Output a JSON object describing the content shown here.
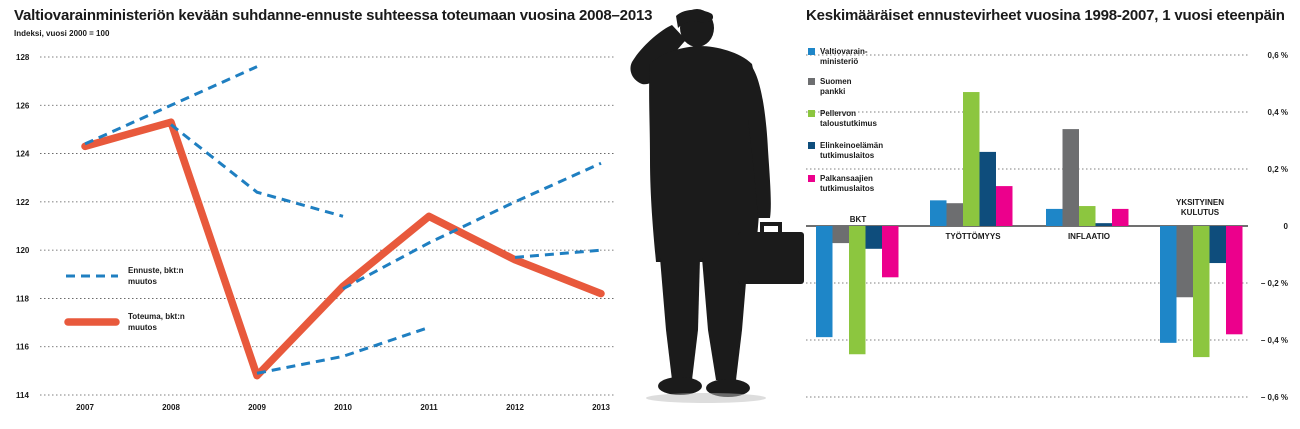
{
  "left_chart": {
    "title": "Valtiovarainministeriön kevään suhdanne-ennuste suhteessa toteumaan vuosina 2008–2013",
    "subtitle": "Indeksi, vuosi 2000 = 100"
  },
  "right_chart": {
    "title": "Keskimääräiset ennustevirheet vuosina 1998-2007, 1 vuosi eteenpäin"
  },
  "colors": {
    "forecast": "#1f7fc1",
    "actual": "#e8593c",
    "grid": "#555555",
    "valtiovarainministerio": "#1e86c8",
    "suomen_pankki": "#6d6e70",
    "pellervo": "#8cc63f",
    "elinkeinoelama": "#0e4d7c",
    "palkansaajat": "#ec008c"
  },
  "chart_data": [
    {
      "type": "line",
      "title": "Valtiovarainministeriön kevään suhdanne-ennuste suhteessa toteumaan vuosina 2008–2013",
      "ylabel": "Indeksi, vuosi 2000 = 100",
      "x": [
        "2007",
        "2008",
        "2009",
        "2010",
        "2011",
        "2012",
        "2013"
      ],
      "ylim": [
        114,
        128
      ],
      "yticks": [
        "114",
        "116",
        "118",
        "120",
        "122",
        "124",
        "126",
        "128"
      ],
      "grid": true,
      "legend_position": "left",
      "series": [
        {
          "name": "Toteuma, bkt:n muutos",
          "style": "solid",
          "color": "#e8593c",
          "points": [
            [
              "2007",
              124.3
            ],
            [
              "2008",
              125.3
            ],
            [
              "2009",
              114.8
            ],
            [
              "2010",
              118.5
            ],
            [
              "2011",
              121.4
            ],
            [
              "2012",
              119.6
            ],
            [
              "2013",
              118.2
            ]
          ]
        },
        {
          "name": "Ennuste, bkt:n muutos",
          "style": "dashed",
          "color": "#1f7fc1",
          "segments": [
            [
              [
                "2007",
                124.4
              ],
              [
                "2008",
                126.0
              ],
              [
                "2009",
                127.6
              ]
            ],
            [
              [
                "2008",
                125.2
              ],
              [
                "2009",
                122.4
              ],
              [
                "2010",
                121.4
              ]
            ],
            [
              [
                "2009",
                114.9
              ],
              [
                "2010",
                115.6
              ],
              [
                "2011",
                116.8
              ]
            ],
            [
              [
                "2010",
                118.4
              ],
              [
                "2011",
                120.3
              ],
              [
                "2012",
                122.0
              ],
              [
                "2013",
                123.6
              ]
            ],
            [
              [
                "2012",
                119.7
              ],
              [
                "2013",
                120.0
              ]
            ]
          ]
        }
      ]
    },
    {
      "type": "bar",
      "title": "Keskimääräiset ennustevirheet vuosina 1998-2007, 1 vuosi eteenpäin",
      "categories": [
        "BKT",
        "TYÖTTÖMYYS",
        "INFLAATIO",
        "YKSITYINEN KULUTUS"
      ],
      "ylim": [
        -0.6,
        0.6
      ],
      "yticks": [
        "– 0,6 %",
        "– 0,4 %",
        "– 0,2 %",
        "0",
        "0,2 %",
        "0,4 %",
        "0,6 %"
      ],
      "ytick_values": [
        -0.6,
        -0.4,
        -0.2,
        0,
        0.2,
        0.4,
        0.6
      ],
      "grid": true,
      "legend_position": "top-left",
      "series": [
        {
          "name": "Valtiovarain-ministeriö",
          "legend_lines": [
            "Valtiovarain-",
            "ministeriö"
          ],
          "color": "#1e86c8",
          "values": [
            -0.39,
            0.09,
            0.06,
            -0.41
          ]
        },
        {
          "name": "Suomen pankki",
          "legend_lines": [
            "Suomen",
            "pankki"
          ],
          "color": "#6d6e70",
          "values": [
            -0.06,
            0.08,
            0.34,
            -0.25
          ]
        },
        {
          "name": "Pellervon taloustutkimus",
          "legend_lines": [
            "Pellervon",
            "taloustutkimus"
          ],
          "color": "#8cc63f",
          "values": [
            -0.45,
            0.47,
            0.07,
            -0.46
          ]
        },
        {
          "name": "Elinkeinoelämän tutkimuslaitos",
          "legend_lines": [
            "Elinkeinoelämän",
            "tutkimuslaitos"
          ],
          "color": "#0e4d7c",
          "values": [
            -0.08,
            0.26,
            0.01,
            -0.13
          ]
        },
        {
          "name": "Palkansaajien tutkimuslaitos",
          "legend_lines": [
            "Palkansaajien",
            "tutkimuslaitos"
          ],
          "color": "#ec008c",
          "values": [
            -0.18,
            0.14,
            0.06,
            -0.38
          ]
        }
      ]
    }
  ]
}
